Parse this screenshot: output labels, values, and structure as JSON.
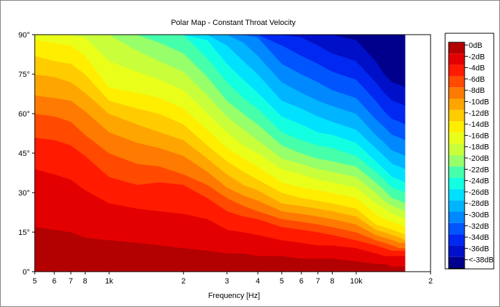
{
  "chart_data": {
    "type": "heatmap",
    "title": "Polar Map - Constant Throat Velocity",
    "xlabel": "Frequency [Hz]",
    "ylabel": "",
    "x_scale": "log",
    "xlim": [
      500,
      20000
    ],
    "ylim": [
      0,
      90
    ],
    "x_ticks": [
      {
        "value": 500,
        "label": "5"
      },
      {
        "value": 600,
        "label": "6"
      },
      {
        "value": 700,
        "label": "7"
      },
      {
        "value": 800,
        "label": "8"
      },
      {
        "value": 1000,
        "label": "1k"
      },
      {
        "value": 2000,
        "label": "2"
      },
      {
        "value": 3000,
        "label": "3"
      },
      {
        "value": 4000,
        "label": "4"
      },
      {
        "value": 5000,
        "label": "5"
      },
      {
        "value": 6000,
        "label": "6"
      },
      {
        "value": 7000,
        "label": "7"
      },
      {
        "value": 8000,
        "label": "8"
      },
      {
        "value": 10000,
        "label": "10k"
      },
      {
        "value": 20000,
        "label": "2"
      }
    ],
    "y_ticks": [
      {
        "value": 0,
        "label": "0°"
      },
      {
        "value": 15,
        "label": "15°"
      },
      {
        "value": 30,
        "label": "30°"
      },
      {
        "value": 45,
        "label": "45°"
      },
      {
        "value": 60,
        "label": "60°"
      },
      {
        "value": 75,
        "label": "75°"
      },
      {
        "value": 90,
        "label": "90°"
      }
    ],
    "data_x_max": 15800,
    "contour_levels_db": [
      -2,
      -4,
      -6,
      -8,
      -10,
      -12,
      -14,
      -16,
      -18,
      -20,
      -22,
      -24,
      -26,
      -28,
      -30,
      -32,
      -34,
      -36,
      -38
    ],
    "contours_angle_deg": {
      "frequencies_hz": [
        500,
        600,
        700,
        800,
        1000,
        1300,
        1600,
        2000,
        2500,
        3000,
        3500,
        4000,
        5000,
        6000,
        7000,
        8000,
        10000,
        12000,
        13000,
        14000,
        15000,
        15800
      ],
      "levels": [
        {
          "db": -2,
          "angle": [
            17,
            16,
            15,
            13,
            12,
            11,
            10,
            9,
            8,
            7,
            7,
            6,
            6,
            5,
            5,
            5,
            4,
            3,
            3,
            2,
            2,
            2
          ]
        },
        {
          "db": -4,
          "angle": [
            39,
            37,
            35,
            31,
            26,
            24,
            23,
            22,
            20,
            16,
            15,
            14,
            12,
            11,
            10,
            10,
            9,
            7,
            6,
            6,
            6,
            6
          ]
        },
        {
          "db": -6,
          "angle": [
            51,
            50,
            48,
            44,
            36,
            33,
            34,
            33,
            28,
            23,
            21,
            20,
            17,
            16,
            15,
            14,
            12,
            10,
            9,
            8,
            8,
            8
          ]
        },
        {
          "db": -8,
          "angle": [
            60,
            59,
            57,
            52,
            45,
            41,
            40,
            37,
            33,
            28,
            25,
            23,
            20,
            19,
            18,
            17,
            15,
            12,
            11,
            10,
            9,
            9
          ]
        },
        {
          "db": -10,
          "angle": [
            67,
            66,
            65,
            61,
            53,
            49,
            47,
            44,
            38,
            32,
            29,
            27,
            23,
            22,
            21,
            20,
            18,
            14,
            13,
            12,
            11,
            11
          ]
        },
        {
          "db": -12,
          "angle": [
            75,
            74,
            72,
            68,
            60,
            56,
            53,
            50,
            43,
            37,
            33,
            31,
            26,
            25,
            24,
            23,
            21,
            16,
            15,
            14,
            13,
            12
          ]
        },
        {
          "db": -14,
          "angle": [
            82,
            80,
            79,
            75,
            65,
            62,
            60,
            56,
            48,
            42,
            38,
            35,
            30,
            28,
            27,
            26,
            24,
            18,
            17,
            16,
            15,
            14
          ]
        },
        {
          "db": -16,
          "angle": [
            88,
            87,
            86,
            82,
            70,
            68,
            66,
            62,
            54,
            47,
            43,
            40,
            34,
            32,
            31,
            30,
            28,
            22,
            20,
            19,
            18,
            17
          ]
        },
        {
          "db": -18,
          "angle": [
            90,
            90,
            90,
            89,
            80,
            76,
            73,
            69,
            60,
            53,
            48,
            45,
            39,
            37,
            35,
            34,
            32,
            26,
            24,
            22,
            21,
            20
          ]
        },
        {
          "db": -20,
          "angle": [
            90,
            90,
            90,
            90,
            90,
            84,
            80,
            76,
            67,
            59,
            54,
            50,
            43,
            41,
            39,
            38,
            36,
            30,
            27,
            25,
            24,
            23
          ]
        },
        {
          "db": -22,
          "angle": [
            90,
            90,
            90,
            90,
            90,
            90,
            87,
            83,
            74,
            65,
            60,
            56,
            48,
            45,
            43,
            42,
            40,
            34,
            31,
            28,
            27,
            26
          ]
        },
        {
          "db": -24,
          "angle": [
            90,
            90,
            90,
            90,
            90,
            90,
            90,
            90,
            81,
            72,
            66,
            62,
            53,
            50,
            48,
            47,
            44,
            38,
            35,
            32,
            31,
            30
          ]
        },
        {
          "db": -26,
          "angle": [
            90,
            90,
            90,
            90,
            90,
            90,
            90,
            90,
            88,
            79,
            73,
            68,
            59,
            56,
            53,
            52,
            49,
            42,
            39,
            36,
            35,
            34
          ]
        },
        {
          "db": -28,
          "angle": [
            90,
            90,
            90,
            90,
            90,
            90,
            90,
            90,
            90,
            86,
            80,
            75,
            65,
            62,
            59,
            57,
            54,
            47,
            44,
            41,
            40,
            39
          ]
        },
        {
          "db": -30,
          "angle": [
            90,
            90,
            90,
            90,
            90,
            90,
            90,
            90,
            90,
            90,
            87,
            82,
            72,
            68,
            65,
            63,
            60,
            52,
            49,
            46,
            45,
            44
          ]
        },
        {
          "db": -32,
          "angle": [
            90,
            90,
            90,
            90,
            90,
            90,
            90,
            90,
            90,
            90,
            90,
            89,
            79,
            75,
            72,
            69,
            66,
            58,
            55,
            52,
            51,
            50
          ]
        },
        {
          "db": -34,
          "angle": [
            90,
            90,
            90,
            90,
            90,
            90,
            90,
            90,
            90,
            90,
            90,
            90,
            86,
            82,
            79,
            76,
            73,
            65,
            61,
            58,
            57,
            56
          ]
        },
        {
          "db": -36,
          "angle": [
            90,
            90,
            90,
            90,
            90,
            90,
            90,
            90,
            90,
            90,
            90,
            90,
            90,
            89,
            86,
            83,
            80,
            72,
            68,
            65,
            64,
            63
          ]
        },
        {
          "db": -38,
          "angle": [
            90,
            90,
            90,
            90,
            90,
            90,
            90,
            90,
            90,
            90,
            90,
            90,
            90,
            90,
            90,
            90,
            88,
            80,
            75,
            72,
            71,
            70
          ]
        }
      ]
    },
    "legend": {
      "placement": "right",
      "entries": [
        {
          "label": "0dB",
          "color": "#b30000"
        },
        {
          "label": "-2dB",
          "color": "#e30000"
        },
        {
          "label": "-4dB",
          "color": "#ff1a00"
        },
        {
          "label": "-6dB",
          "color": "#ff4a00"
        },
        {
          "label": "-8dB",
          "color": "#ff7a00"
        },
        {
          "label": "-10dB",
          "color": "#ffa500"
        },
        {
          "label": "-12dB",
          "color": "#ffcc00"
        },
        {
          "label": "-14dB",
          "color": "#ffee00"
        },
        {
          "label": "-16dB",
          "color": "#e9ff1a"
        },
        {
          "label": "-18dB",
          "color": "#c8ff3a"
        },
        {
          "label": "-20dB",
          "color": "#96ff6a"
        },
        {
          "label": "-22dB",
          "color": "#46ffaa"
        },
        {
          "label": "-24dB",
          "color": "#12ffe2"
        },
        {
          "label": "-26dB",
          "color": "#00e1ff"
        },
        {
          "label": "-28dB",
          "color": "#00b4ff"
        },
        {
          "label": "-30dB",
          "color": "#0088ff"
        },
        {
          "label": "-32dB",
          "color": "#0055ff"
        },
        {
          "label": "-34dB",
          "color": "#0028f0"
        },
        {
          "label": "-36dB",
          "color": "#0010c8"
        },
        {
          "label": "<-38dB",
          "color": "#00008c"
        }
      ]
    },
    "grid": false
  }
}
